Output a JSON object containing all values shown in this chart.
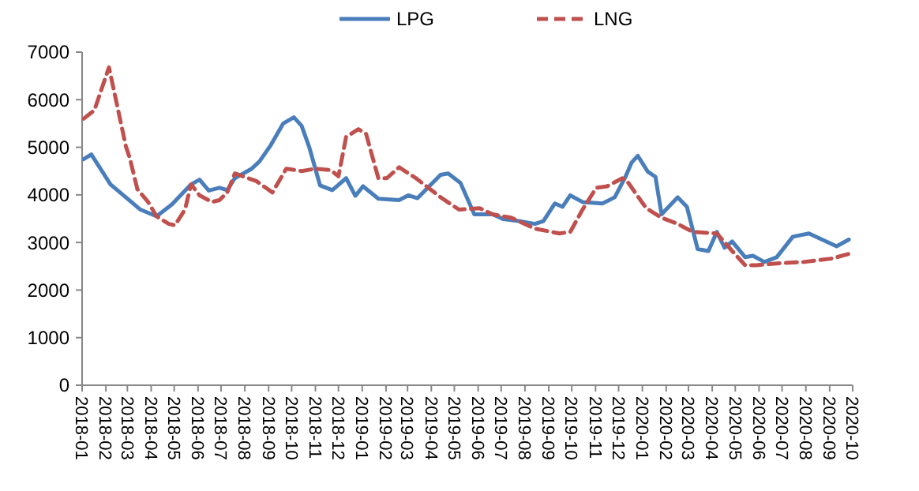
{
  "chart_data": {
    "type": "line",
    "xlim": [
      "2018-01",
      "2020-10"
    ],
    "xticks": [
      "2018-01",
      "2018-02",
      "2018-03",
      "2018-04",
      "2018-05",
      "2018-06",
      "2018-07",
      "2018-08",
      "2018-09",
      "2018-10",
      "2018-11",
      "2018-12",
      "2019-01",
      "2019-02",
      "2019-03",
      "2019-04",
      "2019-05",
      "2019-06",
      "2019-07",
      "2019-08",
      "2019-09",
      "2019-10",
      "2019-11",
      "2019-12",
      "2020-01",
      "2020-02",
      "2020-03",
      "2020-04",
      "2020-05",
      "2020-06",
      "2020-07",
      "2020-08",
      "2020-09",
      "2020-10"
    ],
    "ylim": [
      0,
      7000
    ],
    "yticks": [
      0,
      1000,
      2000,
      3000,
      4000,
      5000,
      6000,
      7000
    ],
    "grid": false,
    "legend": "top",
    "marker": "none",
    "series": [
      {
        "name": "LPG",
        "color": "#4a7ebb",
        "line_style": "solid",
        "x": [
          "2018-01-03",
          "2018-01-13",
          "2018-02-07",
          "2018-03-18",
          "2018-04-08",
          "2018-04-28",
          "2018-05-23",
          "2018-06-03",
          "2018-06-15",
          "2018-06-29",
          "2018-07-09",
          "2018-07-19",
          "2018-08-10",
          "2018-08-20",
          "2018-09-04",
          "2018-09-20",
          "2018-10-04",
          "2018-10-14",
          "2018-10-24",
          "2018-11-07",
          "2018-11-23",
          "2018-12-11",
          "2018-12-23",
          "2019-01-02",
          "2019-01-22",
          "2019-02-18",
          "2019-03-02",
          "2019-03-14",
          "2019-04-13",
          "2019-04-23",
          "2019-05-09",
          "2019-05-27",
          "2019-06-20",
          "2019-07-04",
          "2019-07-24",
          "2019-08-14",
          "2019-08-25",
          "2019-09-09",
          "2019-09-19",
          "2019-09-29",
          "2019-10-15",
          "2019-11-10",
          "2019-11-26",
          "2019-12-10",
          "2019-12-18",
          "2019-12-26",
          "2020-01-08",
          "2020-01-18",
          "2020-01-26",
          "2020-02-16",
          "2020-02-28",
          "2020-03-13",
          "2020-03-27",
          "2020-04-07",
          "2020-04-17",
          "2020-04-27",
          "2020-05-14",
          "2020-05-24",
          "2020-06-08",
          "2020-06-24",
          "2020-07-15",
          "2020-08-05",
          "2020-09-10",
          "2020-09-26"
        ],
        "values": [
          4750,
          4850,
          4220,
          3690,
          3550,
          3800,
          4220,
          4320,
          4090,
          4150,
          4100,
          4350,
          4550,
          4700,
          5050,
          5500,
          5630,
          5450,
          5000,
          4200,
          4100,
          4350,
          3980,
          4180,
          3920,
          3890,
          3990,
          3930,
          4420,
          4450,
          4250,
          3590,
          3590,
          3490,
          3450,
          3390,
          3450,
          3820,
          3750,
          3990,
          3850,
          3820,
          3950,
          4380,
          4680,
          4820,
          4490,
          4380,
          3590,
          3950,
          3750,
          2860,
          2820,
          3220,
          2890,
          3020,
          2690,
          2720,
          2590,
          2690,
          3120,
          3190,
          2920,
          3060
        ]
      },
      {
        "name": "LNG",
        "color": "#c0504d",
        "line_style": "dashed",
        "x": [
          "2018-01-03",
          "2018-01-17",
          "2018-02-05",
          "2018-02-27",
          "2018-03-04",
          "2018-03-14",
          "2018-03-28",
          "2018-04-08",
          "2018-04-24",
          "2018-05-02",
          "2018-05-15",
          "2018-05-23",
          "2018-06-03",
          "2018-06-19",
          "2018-06-29",
          "2018-07-09",
          "2018-07-19",
          "2018-08-16",
          "2018-09-06",
          "2018-09-24",
          "2018-10-14",
          "2018-11-01",
          "2018-11-21",
          "2018-12-01",
          "2018-12-11",
          "2018-12-27",
          "2019-01-06",
          "2019-01-22",
          "2019-02-02",
          "2019-02-18",
          "2019-03-12",
          "2019-04-13",
          "2019-05-07",
          "2019-06-03",
          "2019-06-20",
          "2019-07-14",
          "2019-08-14",
          "2019-09-15",
          "2019-09-29",
          "2019-10-15",
          "2019-11-02",
          "2019-11-16",
          "2019-12-06",
          "2019-12-12",
          "2020-01-06",
          "2020-01-26",
          "2020-02-16",
          "2020-03-07",
          "2020-04-07",
          "2020-04-27",
          "2020-05-14",
          "2020-05-28",
          "2020-06-24",
          "2020-07-29",
          "2020-09-03",
          "2020-09-26"
        ],
        "values": [
          5600,
          5780,
          6680,
          5020,
          4780,
          4120,
          3850,
          3550,
          3390,
          3360,
          3690,
          4220,
          3990,
          3850,
          3890,
          4050,
          4450,
          4290,
          4050,
          4550,
          4500,
          4550,
          4520,
          4390,
          5220,
          5380,
          5280,
          4350,
          4350,
          4580,
          4350,
          3950,
          3690,
          3720,
          3590,
          3520,
          3290,
          3190,
          3220,
          3690,
          4150,
          4180,
          4350,
          4290,
          3720,
          3520,
          3390,
          3220,
          3190,
          2820,
          2520,
          2520,
          2560,
          2590,
          2660,
          2760
        ]
      }
    ]
  }
}
